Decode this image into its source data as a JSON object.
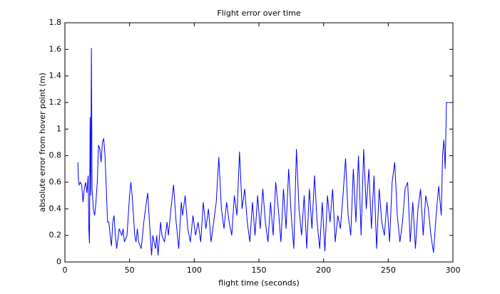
{
  "chart_data": {
    "type": "line",
    "title": "Flight error over time",
    "xlabel": "flight time (seconds)",
    "ylabel": "absolute error from hover point (m)",
    "color": "#0000ff",
    "x": [
      10,
      10.5,
      11,
      12,
      13,
      14,
      15,
      16,
      17,
      18,
      18.5,
      19,
      19.5,
      20,
      20.5,
      21,
      22,
      23,
      24,
      25,
      26,
      27,
      28,
      29,
      30,
      31,
      32,
      33,
      34,
      35,
      36,
      37,
      38,
      39,
      40,
      42,
      44,
      45,
      46,
      48,
      50,
      51,
      52,
      54,
      55,
      56,
      57,
      59,
      61,
      63,
      64,
      66,
      67,
      68,
      70,
      71,
      72,
      74,
      75,
      77,
      79,
      80,
      82,
      84,
      86,
      88,
      90,
      91,
      93,
      95,
      97,
      99,
      101,
      103,
      105,
      107,
      109,
      111,
      113,
      115,
      117,
      119,
      121,
      123,
      125,
      127,
      129,
      131,
      133,
      135,
      137,
      139,
      141,
      143,
      145,
      147,
      149,
      151,
      153,
      155,
      157,
      159,
      161,
      163,
      165,
      167,
      169,
      171,
      173,
      175,
      177,
      179,
      181,
      183,
      185,
      187,
      189,
      191,
      193,
      195,
      197,
      199,
      201,
      203,
      205,
      207,
      209,
      211,
      213,
      215,
      217,
      219,
      221,
      223,
      225,
      227,
      229,
      231,
      233,
      235,
      237,
      239,
      241,
      243,
      245,
      247,
      249,
      251,
      253,
      255,
      257,
      259,
      261,
      263,
      265,
      267,
      269,
      271,
      273,
      275,
      277,
      279,
      281,
      283,
      285,
      287,
      289,
      291,
      292,
      293,
      294,
      295,
      296,
      297
    ],
    "values": [
      0.75,
      0.62,
      0.58,
      0.6,
      0.58,
      0.45,
      0.55,
      0.6,
      0.52,
      0.65,
      0.25,
      0.14,
      1.09,
      0.5,
      1.61,
      0.55,
      0.4,
      0.35,
      0.45,
      0.6,
      0.88,
      0.85,
      0.75,
      0.9,
      0.93,
      0.8,
      0.55,
      0.3,
      0.3,
      0.2,
      0.12,
      0.3,
      0.35,
      0.2,
      0.1,
      0.25,
      0.2,
      0.25,
      0.15,
      0.2,
      0.5,
      0.6,
      0.5,
      0.2,
      0.15,
      0.25,
      0.15,
      0.1,
      0.3,
      0.45,
      0.52,
      0.2,
      0.05,
      0.2,
      0.1,
      0.2,
      0.05,
      0.3,
      0.2,
      0.15,
      0.3,
      0.2,
      0.4,
      0.58,
      0.3,
      0.1,
      0.45,
      0.35,
      0.5,
      0.25,
      0.15,
      0.35,
      0.2,
      0.3,
      0.15,
      0.45,
      0.25,
      0.4,
      0.15,
      0.3,
      0.45,
      0.79,
      0.4,
      0.25,
      0.45,
      0.3,
      0.2,
      0.5,
      0.35,
      0.83,
      0.4,
      0.55,
      0.3,
      0.15,
      0.45,
      0.2,
      0.5,
      0.25,
      0.55,
      0.3,
      0.15,
      0.45,
      0.2,
      0.6,
      0.4,
      0.15,
      0.55,
      0.25,
      0.7,
      0.35,
      0.1,
      0.85,
      0.4,
      0.2,
      0.5,
      0.1,
      0.55,
      0.25,
      0.65,
      0.3,
      0.1,
      0.45,
      0.08,
      0.5,
      0.3,
      0.55,
      0.15,
      0.35,
      0.25,
      0.5,
      0.78,
      0.35,
      0.2,
      0.7,
      0.3,
      0.8,
      0.2,
      0.85,
      0.4,
      0.7,
      0.25,
      0.65,
      0.1,
      0.55,
      0.3,
      0.2,
      0.45,
      0.15,
      0.6,
      0.75,
      0.35,
      0.15,
      0.3,
      0.55,
      0.6,
      0.15,
      0.45,
      0.1,
      0.4,
      0.55,
      0.2,
      0.5,
      0.4,
      0.2,
      0.07,
      0.35,
      0.57,
      0.35,
      0.8,
      0.92,
      0.7,
      1.2,
      1.2,
      1.2
    ],
    "xlim": [
      0,
      300
    ],
    "xticks": [
      0,
      50,
      100,
      150,
      200,
      250,
      300
    ],
    "ylim": [
      0,
      1.8
    ],
    "yticks": [
      0,
      0.2,
      0.4,
      0.6,
      0.8,
      1,
      1.2,
      1.4,
      1.6,
      1.8
    ]
  }
}
